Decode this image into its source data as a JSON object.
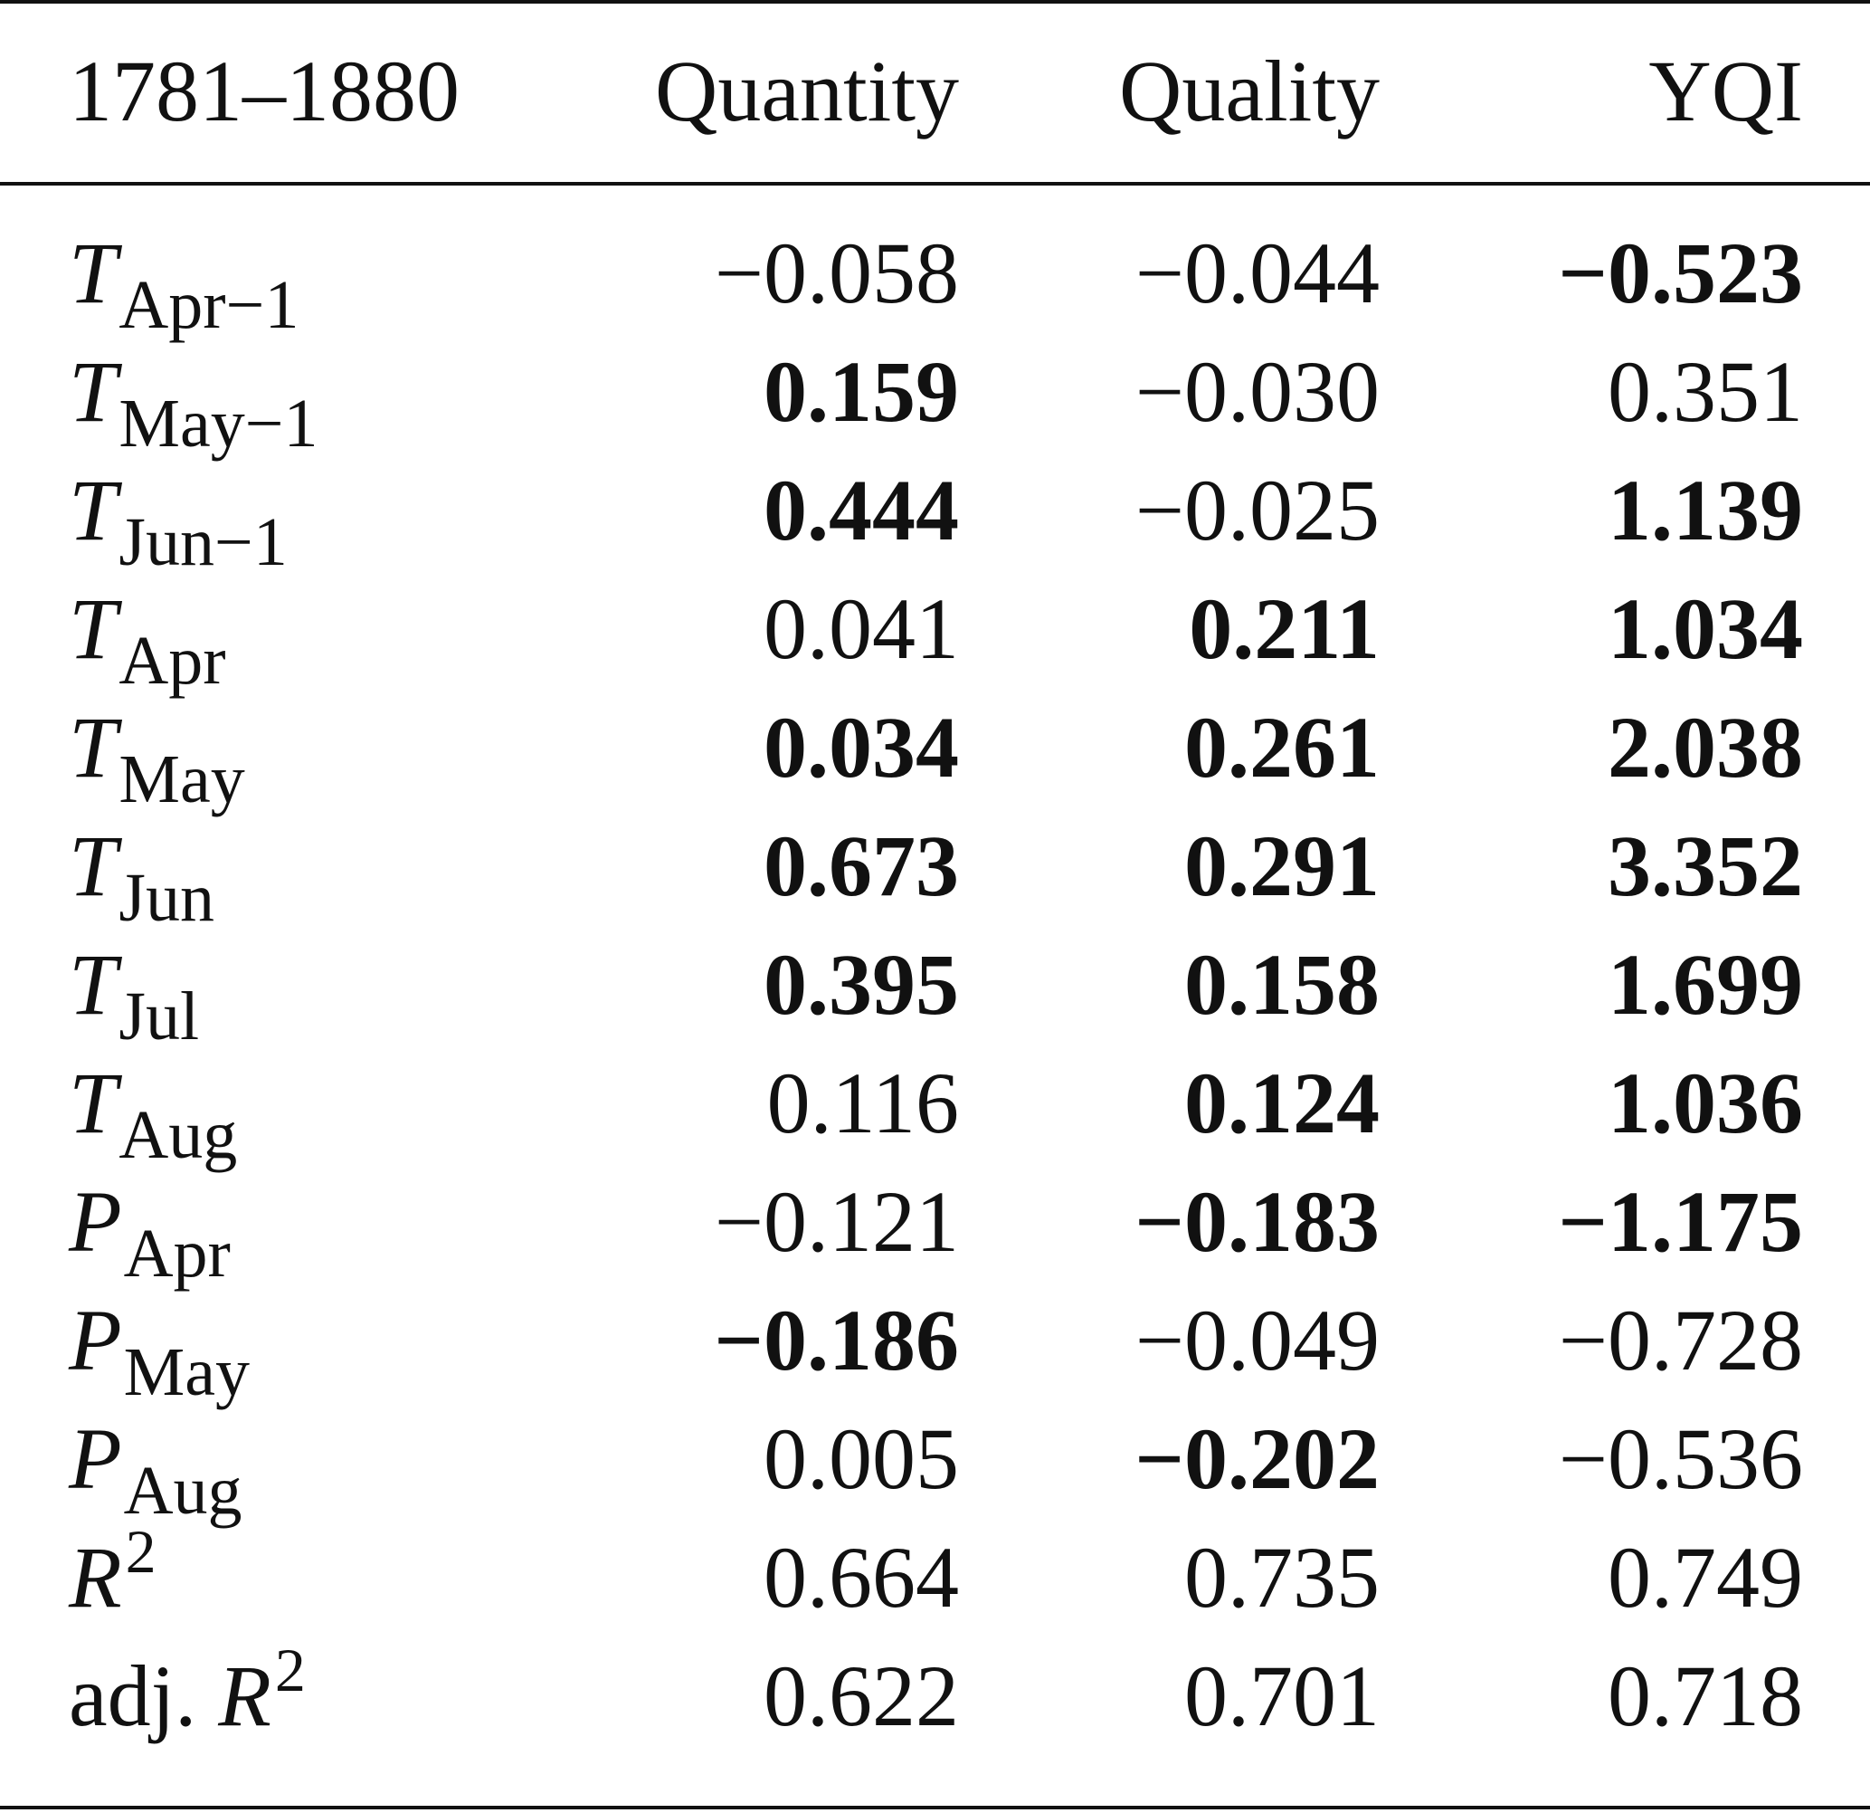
{
  "table": {
    "columns": [
      "1781–1880",
      "Quantity",
      "Quality",
      "YQI"
    ],
    "rows": [
      {
        "symbol": "T",
        "sub": "Apr−1",
        "values": [
          "−0.058",
          "−0.044",
          "−0.523"
        ],
        "bold": [
          false,
          false,
          true
        ]
      },
      {
        "symbol": "T",
        "sub": "May−1",
        "values": [
          "0.159",
          "−0.030",
          "0.351"
        ],
        "bold": [
          true,
          false,
          false
        ]
      },
      {
        "symbol": "T",
        "sub": "Jun−1",
        "values": [
          "0.444",
          "−0.025",
          "1.139"
        ],
        "bold": [
          true,
          false,
          true
        ]
      },
      {
        "symbol": "T",
        "sub": "Apr",
        "values": [
          "0.041",
          "0.211",
          "1.034"
        ],
        "bold": [
          false,
          true,
          true
        ]
      },
      {
        "symbol": "T",
        "sub": "May",
        "values": [
          "0.034",
          "0.261",
          "2.038"
        ],
        "bold": [
          true,
          true,
          true
        ]
      },
      {
        "symbol": "T",
        "sub": "Jun",
        "values": [
          "0.673",
          "0.291",
          "3.352"
        ],
        "bold": [
          true,
          true,
          true
        ]
      },
      {
        "symbol": "T",
        "sub": "Jul",
        "values": [
          "0.395",
          "0.158",
          "1.699"
        ],
        "bold": [
          true,
          true,
          true
        ]
      },
      {
        "symbol": "T",
        "sub": "Aug",
        "values": [
          "0.116",
          "0.124",
          "1.036"
        ],
        "bold": [
          false,
          true,
          true
        ]
      },
      {
        "symbol": "P",
        "sub": "Apr",
        "values": [
          "−0.121",
          "−0.183",
          "−1.175"
        ],
        "bold": [
          false,
          true,
          true
        ]
      },
      {
        "symbol": "P",
        "sub": "May",
        "values": [
          "−0.186",
          "−0.049",
          "−0.728"
        ],
        "bold": [
          true,
          false,
          false
        ]
      },
      {
        "symbol": "P",
        "sub": "Aug",
        "values": [
          "0.005",
          "−0.202",
          "−0.536"
        ],
        "bold": [
          false,
          true,
          false
        ]
      }
    ],
    "fit_rows": [
      {
        "prefix": "",
        "symbol": "R",
        "sup": "2",
        "values": [
          "0.664",
          "0.735",
          "0.749"
        ]
      },
      {
        "prefix": "adj. ",
        "symbol": "R",
        "sup": "2",
        "values": [
          "0.622",
          "0.701",
          "0.718"
        ]
      }
    ]
  }
}
